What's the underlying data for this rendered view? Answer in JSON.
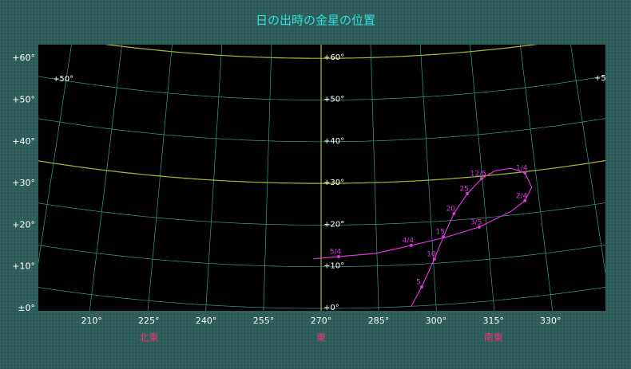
{
  "chart_data": {
    "type": "sky",
    "title": "日の出時の金星の位置",
    "xticks": [
      {
        "value": 210,
        "label": "210°"
      },
      {
        "value": 225,
        "label": "225°"
      },
      {
        "value": 240,
        "label": "240°"
      },
      {
        "value": 255,
        "label": "255°"
      },
      {
        "value": 270,
        "label": "270°"
      },
      {
        "value": 285,
        "label": "285°"
      },
      {
        "value": 300,
        "label": "300°"
      },
      {
        "value": 315,
        "label": "315°"
      },
      {
        "value": 330,
        "label": "330°"
      }
    ],
    "directions": [
      {
        "value": 225,
        "label": "北東"
      },
      {
        "value": 270,
        "label": "東"
      },
      {
        "value": 315,
        "label": "南東"
      }
    ],
    "yticks": [
      {
        "value": 60,
        "label": "+60°"
      },
      {
        "value": 50,
        "label": "+50°"
      },
      {
        "value": 40,
        "label": "+40°"
      },
      {
        "value": 30,
        "label": "+30°"
      },
      {
        "value": 20,
        "label": "+20°"
      },
      {
        "value": 10,
        "label": "+10°"
      },
      {
        "value": 0,
        "label": "±0°"
      }
    ],
    "center_ticks": [
      {
        "value": 60,
        "label": "+60°"
      },
      {
        "value": 50,
        "label": "+50°"
      },
      {
        "value": 40,
        "label": "+40°"
      },
      {
        "value": 30,
        "label": "+30°"
      },
      {
        "value": 20,
        "label": "+20°"
      },
      {
        "value": 10,
        "label": "+10°"
      },
      {
        "value": 0,
        "label": "+0°"
      }
    ],
    "edge_labels": [
      {
        "value": 50,
        "label": "+50°"
      }
    ],
    "az_grid": [
      180,
      195,
      210,
      225,
      240,
      255,
      270,
      285,
      300,
      315,
      330,
      345,
      360
    ],
    "alt_grid": [
      0,
      10,
      20,
      30,
      40,
      50,
      60,
      70,
      80
    ],
    "highlight_az": [
      270
    ],
    "highlight_alt": [
      30,
      60
    ],
    "grid_color": "#3c9c8c",
    "highlight_color": "#a8b832",
    "path": {
      "name": "金星",
      "color": "#dd33dd",
      "az": [
        293.5,
        296.5,
        300.3,
        303.1,
        306.4,
        310.5,
        314.8,
        318.8,
        323.3,
        327.0,
        328.4,
        326.1,
        322.0,
        313.0,
        303.5,
        294.3,
        284.6,
        274.7,
        267.9
      ],
      "alt": [
        0,
        4.5,
        11.0,
        16.2,
        21.6,
        26.1,
        29.4,
        31.0,
        31.2,
        29.7,
        26.1,
        23.1,
        20.9,
        17.9,
        16.0,
        14.6,
        13.0,
        12.4,
        11.9
      ],
      "labels": [
        null,
        "5",
        "10",
        "15",
        "20",
        "25",
        "12/5",
        null,
        null,
        "1/4",
        null,
        "2/4",
        null,
        "3/5",
        null,
        "4/4",
        null,
        "5/4",
        null
      ]
    }
  }
}
